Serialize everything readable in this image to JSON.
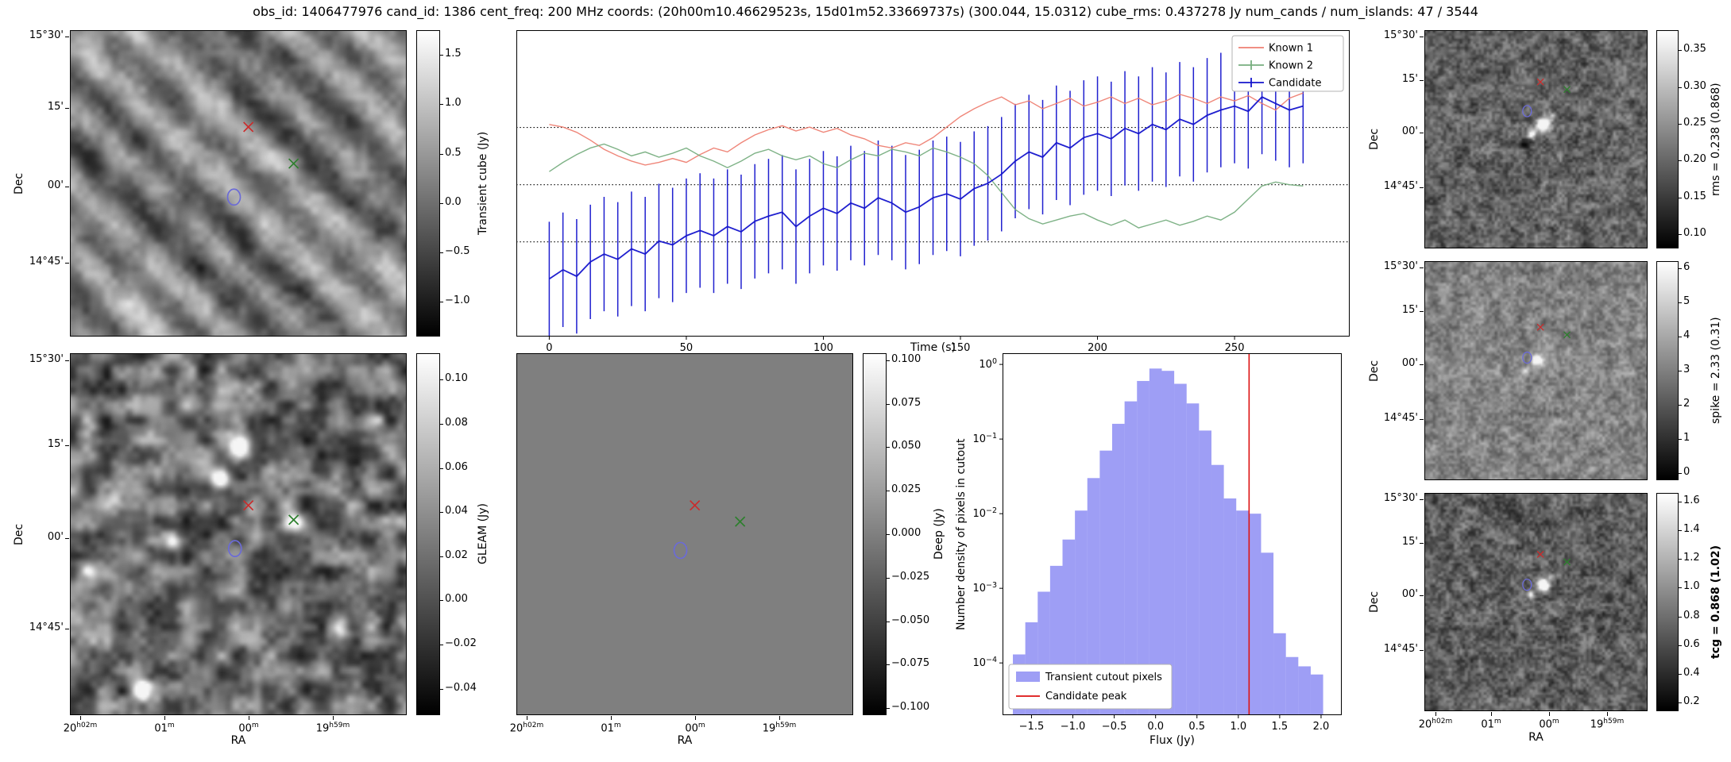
{
  "title": "obs_id: 1406477976 cand_id: 1386 cent_freq: 200 MHz coords: (20h00m10.46629523s, 15d01m52.33669737s) (300.044, 15.0312) cube_rms: 0.437278 Jy num_cands / num_islands: 47 / 3544",
  "colors": {
    "known1": "#ee7f72",
    "known2": "#77ae7f",
    "candidate": "#1414cc",
    "hist_fill": "#6a6af0",
    "peak_line": "#dd1111",
    "marker_red": "#cc2b2b",
    "marker_green": "#2d7f2d",
    "marker_blue": "#6b6bd6"
  },
  "axes": {
    "dec_label": "Dec",
    "ra_label": "RA",
    "dec_ticks": [
      "15°30'",
      "15'",
      "00'",
      "14°45'"
    ],
    "ra_ticks": [
      "20^h02^m",
      "01^m",
      "00^m",
      "19^h59^m"
    ],
    "dec_tick_fracs_large": [
      0.02,
      0.255,
      0.51,
      0.76
    ],
    "dec_tick_fracs_small": [
      0.03,
      0.23,
      0.47,
      0.72
    ],
    "ra_tick_fracs_large": [
      0.03,
      0.28,
      0.53,
      0.78
    ],
    "ra_tick_fracs_small": [
      0.05,
      0.3,
      0.56,
      0.82
    ]
  },
  "chart_data": [
    {
      "id": "lightcurve",
      "type": "line",
      "xlabel": "Time (s)",
      "ylabel": "",
      "xlim": [
        -12,
        292
      ],
      "ylim": [
        -1.16,
        1.18
      ],
      "xticks": [
        0,
        50,
        100,
        150,
        200,
        250
      ],
      "hlines": [
        0.437,
        0.0,
        -0.437
      ],
      "legend_position": "upper right",
      "x": [
        0,
        5,
        10,
        15,
        20,
        25,
        30,
        35,
        40,
        45,
        50,
        55,
        60,
        65,
        70,
        75,
        80,
        85,
        90,
        95,
        100,
        105,
        110,
        115,
        120,
        125,
        130,
        135,
        140,
        145,
        150,
        155,
        160,
        165,
        170,
        175,
        180,
        185,
        190,
        195,
        200,
        205,
        210,
        215,
        220,
        225,
        230,
        235,
        240,
        245,
        250,
        255,
        260,
        265,
        270,
        275
      ],
      "series": [
        {
          "name": "Known 1",
          "color": "#ee7f72",
          "errorbar": false,
          "values": [
            0.46,
            0.44,
            0.4,
            0.34,
            0.27,
            0.22,
            0.18,
            0.15,
            0.17,
            0.2,
            0.17,
            0.23,
            0.28,
            0.25,
            0.32,
            0.38,
            0.42,
            0.45,
            0.41,
            0.44,
            0.4,
            0.43,
            0.38,
            0.35,
            0.3,
            0.28,
            0.32,
            0.3,
            0.36,
            0.44,
            0.52,
            0.58,
            0.63,
            0.67,
            0.61,
            0.64,
            0.58,
            0.62,
            0.66,
            0.6,
            0.63,
            0.67,
            0.62,
            0.66,
            0.61,
            0.64,
            0.69,
            0.66,
            0.62,
            0.67,
            0.64,
            0.68,
            0.62,
            0.57,
            0.66,
            0.7
          ]
        },
        {
          "name": "Known 2",
          "color": "#77ae7f",
          "errorbar": true,
          "values": [
            0.1,
            0.17,
            0.23,
            0.28,
            0.31,
            0.27,
            0.22,
            0.25,
            0.21,
            0.24,
            0.28,
            0.22,
            0.18,
            0.13,
            0.18,
            0.24,
            0.27,
            0.22,
            0.19,
            0.22,
            0.16,
            0.13,
            0.19,
            0.24,
            0.22,
            0.27,
            0.25,
            0.22,
            0.28,
            0.25,
            0.21,
            0.16,
            0.07,
            -0.06,
            -0.19,
            -0.26,
            -0.3,
            -0.27,
            -0.24,
            -0.22,
            -0.27,
            -0.31,
            -0.27,
            -0.33,
            -0.3,
            -0.27,
            -0.31,
            -0.28,
            -0.24,
            -0.27,
            -0.21,
            -0.11,
            -0.01,
            0.02,
            0.0,
            -0.01
          ]
        },
        {
          "name": "Candidate",
          "color": "#1414cc",
          "errorbar": true,
          "yerr": 0.437,
          "values": [
            -0.72,
            -0.65,
            -0.7,
            -0.59,
            -0.53,
            -0.57,
            -0.49,
            -0.53,
            -0.43,
            -0.46,
            -0.39,
            -0.35,
            -0.39,
            -0.32,
            -0.36,
            -0.28,
            -0.24,
            -0.21,
            -0.32,
            -0.24,
            -0.18,
            -0.22,
            -0.14,
            -0.18,
            -0.1,
            -0.14,
            -0.21,
            -0.17,
            -0.1,
            -0.07,
            -0.11,
            -0.03,
            0.01,
            0.08,
            0.18,
            0.25,
            0.21,
            0.32,
            0.28,
            0.36,
            0.39,
            0.35,
            0.43,
            0.39,
            0.46,
            0.42,
            0.5,
            0.46,
            0.53,
            0.57,
            0.6,
            0.56,
            0.67,
            0.62,
            0.57,
            0.6
          ]
        }
      ]
    },
    {
      "id": "histogram",
      "type": "bar",
      "xlabel": "Flux (Jy)",
      "ylabel": "Number density of pixels in cutout",
      "yscale": "log",
      "xlim": [
        -1.85,
        2.25
      ],
      "ylim_exp": [
        -4.7,
        0.15
      ],
      "xticks": [
        -1.5,
        -1.0,
        -0.5,
        0.0,
        0.5,
        1.0,
        1.5,
        2.0
      ],
      "ytick_exponents": [
        0,
        -1,
        -2,
        -3,
        -4
      ],
      "bin_width": 0.15,
      "bin_centers": [
        -1.65,
        -1.5,
        -1.35,
        -1.2,
        -1.05,
        -0.9,
        -0.75,
        -0.6,
        -0.45,
        -0.3,
        -0.15,
        0.0,
        0.15,
        0.3,
        0.45,
        0.6,
        0.75,
        0.9,
        1.05,
        1.2,
        1.35,
        1.5,
        1.65,
        1.8,
        1.95
      ],
      "values": [
        0.00013,
        0.00035,
        0.0009,
        0.002,
        0.0045,
        0.011,
        0.03,
        0.07,
        0.16,
        0.32,
        0.6,
        0.88,
        0.82,
        0.55,
        0.3,
        0.13,
        0.045,
        0.016,
        0.011,
        0.01,
        0.003,
        0.00025,
        0.00012,
        9e-05,
        7e-05
      ],
      "candidate_peak": 1.13,
      "fill_color": "#6a6af0",
      "line_color": "#dd1111",
      "legend": [
        "Transient cutout pixels",
        "Candidate peak"
      ],
      "legend_position": "lower left"
    },
    {
      "id": "transient_cube",
      "type": "heatmap",
      "colorbar_label": "Transient cube (Jy)",
      "colorbar_tick_labels": [
        "1.5",
        "1.0",
        "0.5",
        "0.0",
        "−0.5",
        "−1.0"
      ],
      "colorbar_tick_values": [
        1.5,
        1.0,
        0.5,
        0.0,
        -0.5,
        -1.0
      ],
      "vmin": -1.35,
      "vmax": 1.75,
      "markers": [
        {
          "shape": "x",
          "color": "#cc2b2b",
          "fx": 0.53,
          "fy": 0.315
        },
        {
          "shape": "x",
          "color": "#2d7f2d",
          "fx": 0.665,
          "fy": 0.435
        },
        {
          "shape": "o",
          "color": "#6b6bd6",
          "fx": 0.487,
          "fy": 0.545
        }
      ]
    },
    {
      "id": "gleam",
      "type": "heatmap",
      "colorbar_label": "GLEAM (Jy)",
      "colorbar_tick_labels": [
        "0.10",
        "0.08",
        "0.06",
        "0.04",
        "0.02",
        "0.00",
        "−0.02",
        "−0.04"
      ],
      "colorbar_tick_values": [
        0.1,
        0.08,
        0.06,
        0.04,
        0.02,
        0.0,
        -0.02,
        -0.04
      ],
      "vmin": -0.052,
      "vmax": 0.112,
      "markers": [
        {
          "shape": "x",
          "color": "#cc2b2b",
          "fx": 0.53,
          "fy": 0.42
        },
        {
          "shape": "x",
          "color": "#2d7f2d",
          "fx": 0.665,
          "fy": 0.46
        },
        {
          "shape": "o",
          "color": "#6b6bd6",
          "fx": 0.49,
          "fy": 0.54
        }
      ]
    },
    {
      "id": "deep",
      "type": "heatmap",
      "colorbar_label": "Deep (Jy)",
      "colorbar_tick_labels": [
        "0.100",
        "0.075",
        "0.050",
        "0.025",
        "0.000",
        "−0.025",
        "−0.050",
        "−0.075",
        "−0.100"
      ],
      "colorbar_tick_values": [
        0.1,
        0.075,
        0.05,
        0.025,
        0.0,
        -0.025,
        -0.05,
        -0.075,
        -0.1
      ],
      "vmin": -0.104,
      "vmax": 0.104,
      "markers": [
        {
          "shape": "x",
          "color": "#cc2b2b",
          "fx": 0.53,
          "fy": 0.42
        },
        {
          "shape": "x",
          "color": "#2d7f2d",
          "fx": 0.665,
          "fy": 0.465
        },
        {
          "shape": "o",
          "color": "#6b6bd6",
          "fx": 0.487,
          "fy": 0.545
        }
      ]
    },
    {
      "id": "rms",
      "type": "heatmap",
      "colorbar_label": "rms = 0.238 (0.868)",
      "colorbar_tick_labels": [
        "0.35",
        "0.30",
        "0.25",
        "0.20",
        "0.15",
        "0.10"
      ],
      "colorbar_tick_values": [
        0.35,
        0.3,
        0.25,
        0.2,
        0.15,
        0.1
      ],
      "vmin": 0.081,
      "vmax": 0.377,
      "markers": [
        {
          "shape": "x",
          "color": "#cc2b2b",
          "fx": 0.52,
          "fy": 0.235
        },
        {
          "shape": "x",
          "color": "#2d7f2d",
          "fx": 0.64,
          "fy": 0.27
        },
        {
          "shape": "o",
          "color": "#6b6bd6",
          "fx": 0.46,
          "fy": 0.37
        }
      ]
    },
    {
      "id": "spike",
      "type": "heatmap",
      "colorbar_label": "spike = 2.33 (0.31)",
      "colorbar_tick_labels": [
        "6",
        "5",
        "4",
        "3",
        "2",
        "1",
        "0"
      ],
      "colorbar_tick_values": [
        6,
        5,
        4,
        3,
        2,
        1,
        0
      ],
      "vmin": -0.2,
      "vmax": 6.2,
      "markers": [
        {
          "shape": "x",
          "color": "#cc2b2b",
          "fx": 0.52,
          "fy": 0.3
        },
        {
          "shape": "x",
          "color": "#2d7f2d",
          "fx": 0.64,
          "fy": 0.335
        },
        {
          "shape": "o",
          "color": "#6b6bd6",
          "fx": 0.46,
          "fy": 0.44
        }
      ]
    },
    {
      "id": "tcg",
      "type": "heatmap",
      "colorbar_label": "tcg = 0.868 (1.02)",
      "colorbar_tick_labels": [
        "1.6",
        "1.4",
        "1.2",
        "1.0",
        "0.8",
        "0.6",
        "0.4",
        "0.2"
      ],
      "colorbar_tick_values": [
        1.6,
        1.4,
        1.2,
        1.0,
        0.8,
        0.6,
        0.4,
        0.2
      ],
      "vmin": 0.14,
      "vmax": 1.66,
      "markers": [
        {
          "shape": "x",
          "color": "#cc2b2b",
          "fx": 0.52,
          "fy": 0.28
        },
        {
          "shape": "x",
          "color": "#2d7f2d",
          "fx": 0.64,
          "fy": 0.315
        },
        {
          "shape": "o",
          "color": "#6b6bd6",
          "fx": 0.46,
          "fy": 0.42
        }
      ]
    }
  ]
}
